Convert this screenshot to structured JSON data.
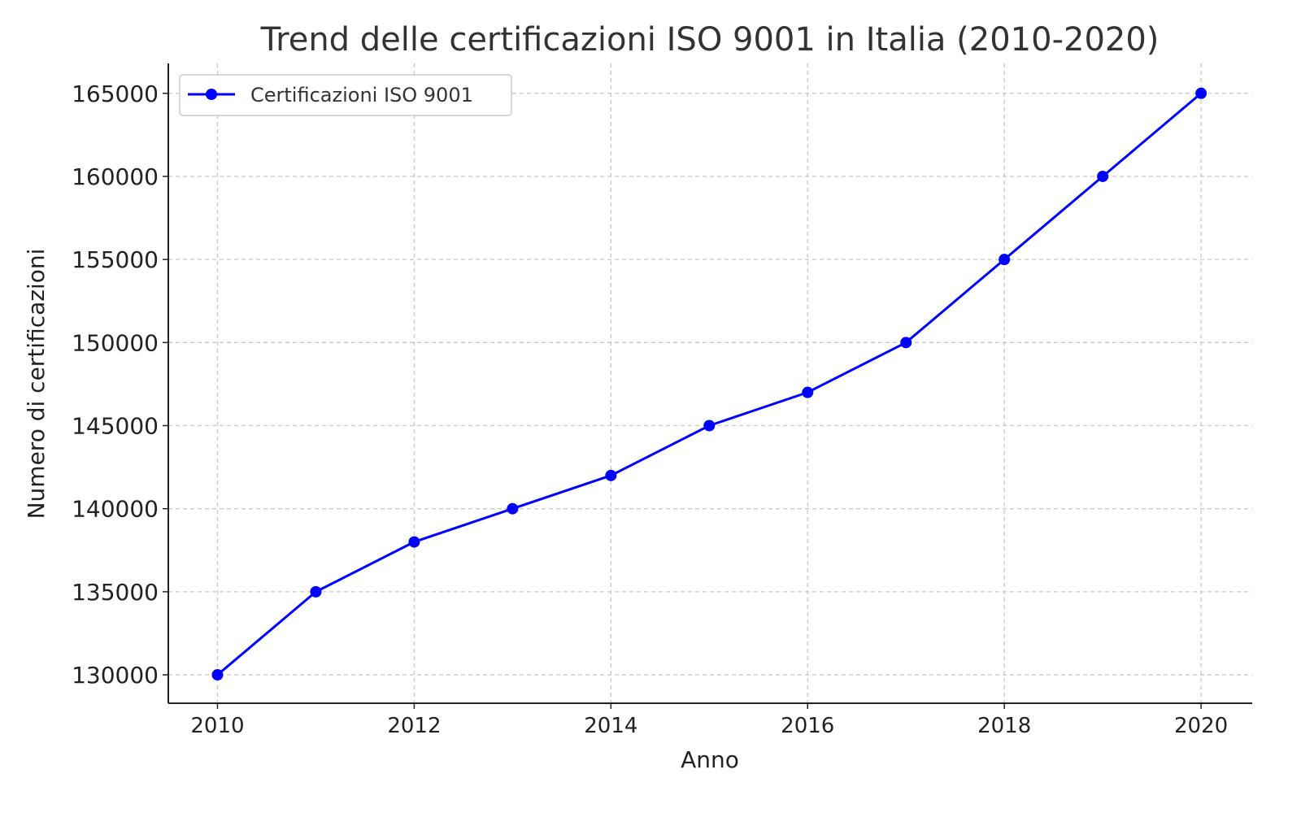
{
  "chart_data": {
    "type": "line",
    "title": "Trend delle certificazioni ISO 9001 in Italia (2010-2020)",
    "xlabel": "Anno",
    "ylabel": "Numero di certificazioni",
    "x": [
      2010,
      2011,
      2012,
      2013,
      2014,
      2015,
      2016,
      2017,
      2018,
      2019,
      2020
    ],
    "series": [
      {
        "name": "Certificazioni ISO 9001",
        "color": "#0000ff",
        "marker": "circle",
        "values": [
          130000,
          135000,
          138000,
          140000,
          142000,
          145000,
          147000,
          150000,
          155000,
          160000,
          165000
        ]
      }
    ],
    "xticks": [
      "2010",
      "2012",
      "2014",
      "2016",
      "2018",
      "2020"
    ],
    "yticks": [
      "130000",
      "135000",
      "140000",
      "145000",
      "150000",
      "155000",
      "160000",
      "165000"
    ],
    "xlim": [
      2009.5,
      2020.52
    ],
    "ylim": [
      128290,
      166800
    ],
    "grid": true,
    "legend_position": "top-left"
  }
}
